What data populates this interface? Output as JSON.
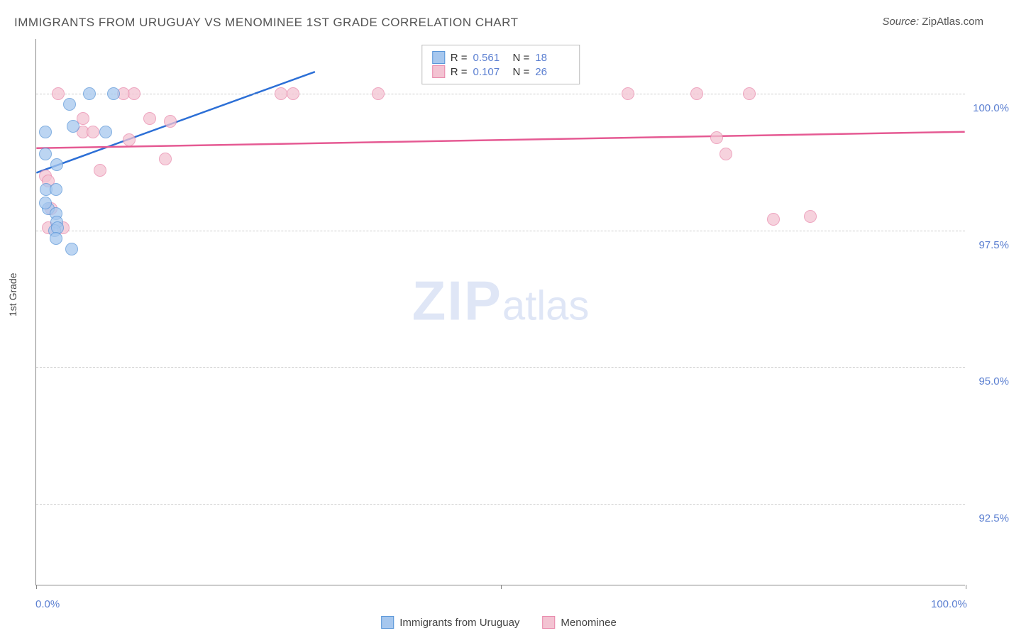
{
  "title": "IMMIGRANTS FROM URUGUAY VS MENOMINEE 1ST GRADE CORRELATION CHART",
  "source_label": "Source:",
  "source_value": "ZipAtlas.com",
  "watermark": {
    "part1": "ZIP",
    "part2": "atlas"
  },
  "y_axis_title": "1st Grade",
  "chart": {
    "type": "scatter",
    "background_color": "#ffffff",
    "grid_color": "#cccccc",
    "border_color": "#888888",
    "xlim": [
      0,
      100
    ],
    "ylim": [
      91.0,
      101.0
    ],
    "x_ticks": [
      0,
      50,
      100
    ],
    "x_tick_labels": [
      "0.0%",
      "",
      "100.0%"
    ],
    "y_grid": [
      92.5,
      95.0,
      97.5,
      100.0
    ],
    "y_tick_labels": [
      "92.5%",
      "95.0%",
      "97.5%",
      "100.0%"
    ],
    "series": [
      {
        "id": "uruguay",
        "name": "Immigrants from Uruguay",
        "fill_color": "#a6c7ee",
        "stroke_color": "#5a96d8",
        "line_color": "#2c6fd6",
        "r_value": "0.561",
        "n_value": "18",
        "trend": {
          "x1": 0,
          "y1": 98.55,
          "x2": 30,
          "y2": 100.4
        },
        "points": [
          {
            "x": 5.7,
            "y": 100.0
          },
          {
            "x": 8.3,
            "y": 100.0
          },
          {
            "x": 3.6,
            "y": 99.8
          },
          {
            "x": 1.0,
            "y": 99.3
          },
          {
            "x": 4.0,
            "y": 99.4
          },
          {
            "x": 7.5,
            "y": 99.3
          },
          {
            "x": 1.0,
            "y": 98.9
          },
          {
            "x": 2.2,
            "y": 98.7
          },
          {
            "x": 1.1,
            "y": 98.25
          },
          {
            "x": 2.1,
            "y": 98.25
          },
          {
            "x": 1.3,
            "y": 97.9
          },
          {
            "x": 1.0,
            "y": 98.0
          },
          {
            "x": 2.1,
            "y": 97.8
          },
          {
            "x": 2.2,
            "y": 97.65
          },
          {
            "x": 2.0,
            "y": 97.5
          },
          {
            "x": 2.3,
            "y": 97.55
          },
          {
            "x": 2.1,
            "y": 97.35
          },
          {
            "x": 3.8,
            "y": 97.15
          }
        ]
      },
      {
        "id": "menominee",
        "name": "Menominee",
        "fill_color": "#f3c3d2",
        "stroke_color": "#e989ac",
        "line_color": "#e55a93",
        "r_value": "0.107",
        "n_value": "26",
        "trend": {
          "x1": 0,
          "y1": 99.0,
          "x2": 100,
          "y2": 99.3
        },
        "points": [
          {
            "x": 2.4,
            "y": 100.0
          },
          {
            "x": 9.4,
            "y": 100.0
          },
          {
            "x": 10.5,
            "y": 100.0
          },
          {
            "x": 26.3,
            "y": 100.0
          },
          {
            "x": 27.6,
            "y": 100.0
          },
          {
            "x": 36.8,
            "y": 100.0
          },
          {
            "x": 63.7,
            "y": 100.0
          },
          {
            "x": 71.1,
            "y": 100.0
          },
          {
            "x": 76.7,
            "y": 100.0
          },
          {
            "x": 5.0,
            "y": 99.55
          },
          {
            "x": 12.2,
            "y": 99.55
          },
          {
            "x": 14.4,
            "y": 99.5
          },
          {
            "x": 5.0,
            "y": 99.3
          },
          {
            "x": 6.1,
            "y": 99.3
          },
          {
            "x": 10.0,
            "y": 99.15
          },
          {
            "x": 73.2,
            "y": 99.2
          },
          {
            "x": 13.9,
            "y": 98.8
          },
          {
            "x": 74.2,
            "y": 98.9
          },
          {
            "x": 6.9,
            "y": 98.6
          },
          {
            "x": 1.0,
            "y": 98.5
          },
          {
            "x": 1.3,
            "y": 98.4
          },
          {
            "x": 1.3,
            "y": 97.55
          },
          {
            "x": 1.6,
            "y": 97.9
          },
          {
            "x": 2.9,
            "y": 97.55
          },
          {
            "x": 79.3,
            "y": 97.7
          },
          {
            "x": 83.3,
            "y": 97.75
          }
        ]
      }
    ]
  },
  "legend_top": {
    "r_label": "R =",
    "n_label": "N ="
  }
}
